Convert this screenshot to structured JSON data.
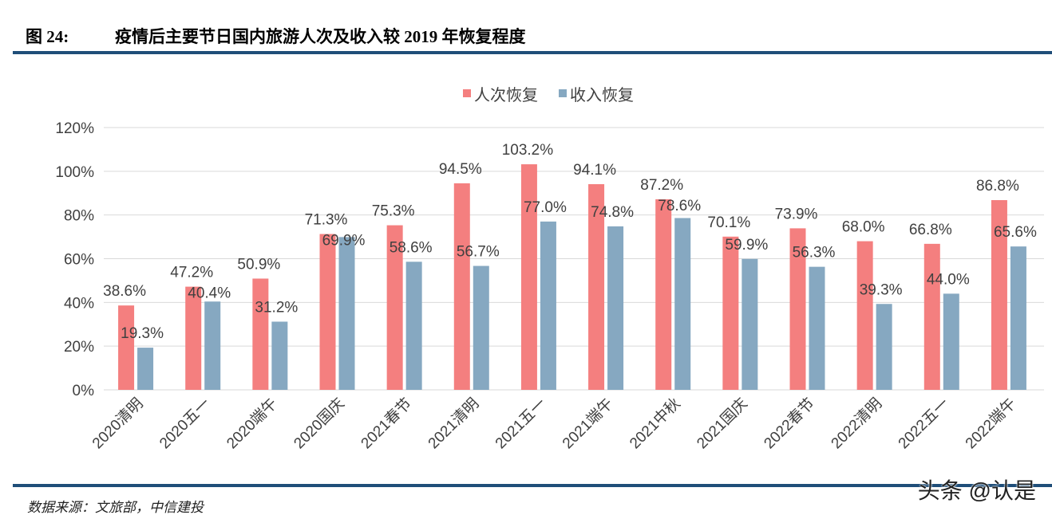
{
  "header": {
    "figure_no": "图 24:",
    "title": "疫情后主要节日国内旅游人次及收入较 2019 年恢复程度"
  },
  "footer": {
    "source": "数据来源：文旅部，中信建投",
    "watermark": "头条 @认是"
  },
  "colors": {
    "rule": "#1f4e79",
    "series1": "#f47f7f",
    "series2": "#86a8c1",
    "grid": "#d9d9d9",
    "text": "#404040"
  },
  "chart_data": {
    "type": "bar",
    "categories": [
      "2020清明",
      "2020五一",
      "2020端午",
      "2020国庆",
      "2021春节",
      "2021清明",
      "2021五一",
      "2021端午",
      "2021中秋",
      "2021国庆",
      "2022春节",
      "2022清明",
      "2022五一",
      "2022端午"
    ],
    "series": [
      {
        "name": "人次恢复",
        "values": [
          38.6,
          47.2,
          50.9,
          71.3,
          75.3,
          94.5,
          103.2,
          94.1,
          87.2,
          70.1,
          73.9,
          68.0,
          66.8,
          86.8
        ]
      },
      {
        "name": "收入恢复",
        "values": [
          19.3,
          40.4,
          31.2,
          69.9,
          58.6,
          56.7,
          77.0,
          74.8,
          78.6,
          59.9,
          56.3,
          39.3,
          44.0,
          65.6
        ]
      }
    ],
    "yticks": [
      "0%",
      "20%",
      "40%",
      "60%",
      "80%",
      "100%",
      "120%"
    ],
    "ylim": [
      0,
      120
    ],
    "grid": true,
    "legend": "top-center",
    "data_labels": true
  }
}
